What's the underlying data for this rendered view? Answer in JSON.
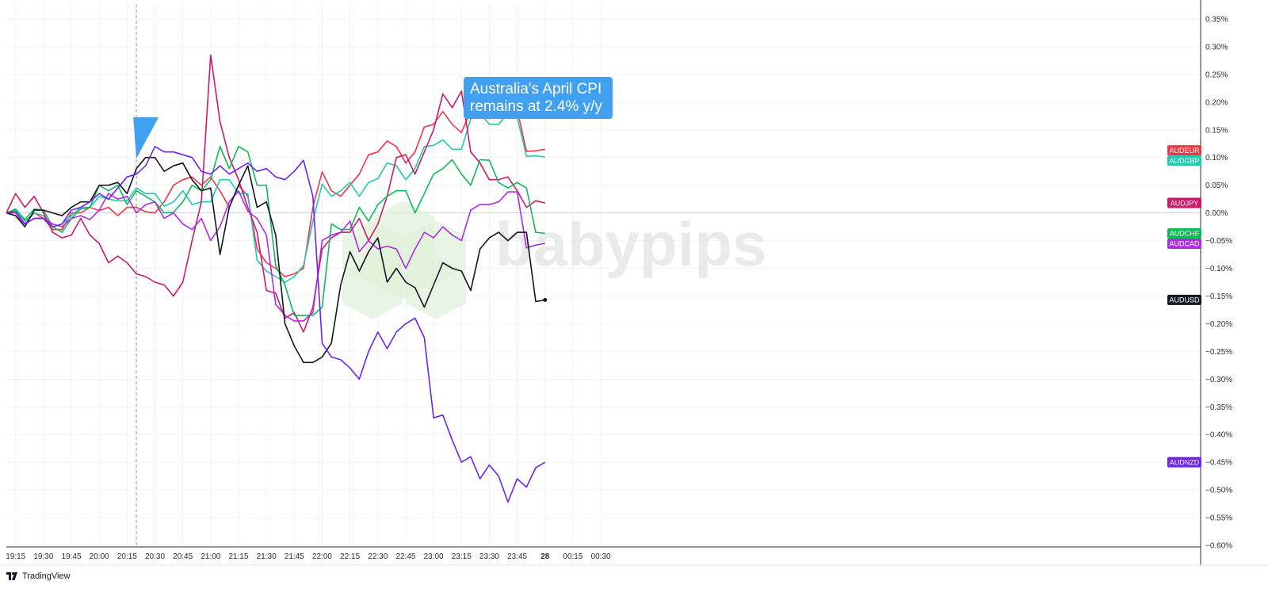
{
  "branding": {
    "platform": "TradingView",
    "watermark": "babypips"
  },
  "annotation": {
    "lines": [
      "Australia's April CPI",
      "remains at 2.4% y/y"
    ],
    "color": "#42a0f0",
    "at_time_index": 14
  },
  "colors": {
    "grid": "#f0f3fa",
    "zero_line": "#d1d4dc",
    "axis": "#2a2e39",
    "crosshair": "#9598a1"
  },
  "chart_data": {
    "type": "line",
    "title": "",
    "xlabel": "",
    "ylabel": "",
    "ylim": [
      -0.6,
      0.35
    ],
    "ytick_values": [
      0.35,
      0.3,
      0.25,
      0.2,
      0.15,
      0.1,
      0.05,
      0.0,
      -0.05,
      -0.1,
      -0.15,
      -0.2,
      -0.25,
      -0.3,
      -0.35,
      -0.4,
      -0.45,
      -0.5,
      -0.55,
      -0.6
    ],
    "ytick_labels": [
      "0.35%",
      "0.30%",
      "0.25%",
      "0.20%",
      "0.15%",
      "0.10%",
      "0.05%",
      "0.00%",
      "−0.05%",
      "−0.10%",
      "−0.15%",
      "−0.20%",
      "−0.25%",
      "−0.30%",
      "−0.35%",
      "−0.40%",
      "−0.45%",
      "−0.50%",
      "−0.55%",
      "−0.60%"
    ],
    "x_ticks": [
      "19:15",
      "19:30",
      "19:45",
      "20:00",
      "20:15",
      "20:30",
      "20:45",
      "21:00",
      "21:15",
      "21:30",
      "21:45",
      "22:00",
      "22:15",
      "22:30",
      "22:45",
      "23:00",
      "23:15",
      "23:30",
      "23:45",
      "28",
      "00:15",
      "00:30"
    ],
    "x_bold_tick": "28",
    "time_step_minutes": 5,
    "first_point_time": "19:10",
    "series": [
      {
        "name": "AUDEUR",
        "color": "#f23645",
        "last": 0.113,
        "values": [
          0,
          0,
          -0.02,
          0,
          -0.01,
          -0.03,
          -0.03,
          0,
          0,
          0.01,
          0.004,
          0.01,
          -0.005,
          0.01,
          0.01,
          0.002,
          0,
          0.02,
          0.05,
          0.06,
          0.065,
          0.05,
          0.065,
          0.04,
          0.01,
          0.05,
          0.03,
          -0.065,
          -0.09,
          -0.1,
          -0.115,
          -0.11,
          -0.1,
          0.01,
          0.074,
          0.04,
          0.03,
          0.05,
          0.07,
          0.105,
          0.11,
          0.13,
          0.12,
          0.09,
          0.11,
          0.155,
          0.16,
          0.183,
          0.16,
          0.145,
          0.185,
          0.183,
          0.17,
          0.18,
          0.205,
          0.187,
          0.111,
          0.112,
          0.115
        ]
      },
      {
        "name": "AUDGBP",
        "color": "#22c8b0",
        "last": 0.101,
        "values": [
          0,
          0.005,
          -0.015,
          0,
          -0.005,
          -0.025,
          -0.02,
          -0.005,
          0.01,
          0.01,
          0.03,
          0.025,
          0.022,
          0.022,
          0.045,
          0.035,
          0.035,
          0.012,
          0.02,
          0.04,
          0.015,
          0.02,
          0.02,
          0.06,
          0.06,
          0.035,
          0.035,
          -0.085,
          -0.105,
          -0.115,
          -0.125,
          -0.115,
          -0.095,
          -0.015,
          0.052,
          0.03,
          0.04,
          0.055,
          0.03,
          0.055,
          0.062,
          0.09,
          0.085,
          0.06,
          0.08,
          0.12,
          0.122,
          0.132,
          0.115,
          0.115,
          0.17,
          0.18,
          0.16,
          0.16,
          0.18,
          0.173,
          0.102,
          0.103,
          0.101
        ]
      },
      {
        "name": "AUDJPY",
        "color": "#cc1a6a",
        "last": 0.018,
        "values": [
          0,
          0.035,
          0.01,
          0.03,
          0,
          -0.035,
          -0.045,
          -0.04,
          -0.01,
          -0.04,
          -0.055,
          -0.09,
          -0.078,
          -0.09,
          -0.11,
          -0.115,
          -0.125,
          -0.13,
          -0.15,
          -0.125,
          -0.05,
          0.02,
          0.285,
          0.165,
          0.1,
          0.06,
          0.01,
          -0.035,
          -0.14,
          -0.145,
          -0.19,
          -0.18,
          -0.215,
          -0.17,
          -0.065,
          -0.045,
          -0.035,
          -0.035,
          -0.01,
          -0.05,
          -0.02,
          0.03,
          0.1,
          0.105,
          0.07,
          0.11,
          0.15,
          0.215,
          0.19,
          0.22,
          0.11,
          0.09,
          0.06,
          0.06,
          0.065,
          0.04,
          0.01,
          0.022,
          0.018
        ]
      },
      {
        "name": "AUDCHF",
        "color": "#0fba58",
        "last": -0.037,
        "values": [
          0,
          0.007,
          -0.012,
          0.007,
          0.005,
          -0.025,
          -0.035,
          -0.01,
          0.007,
          0.01,
          0.05,
          0.04,
          0.05,
          0.015,
          0.04,
          0.03,
          0.02,
          0,
          0.001,
          0.02,
          0.05,
          0.04,
          0.06,
          0.12,
          0.08,
          0.12,
          0.11,
          0.05,
          0.05,
          -0.095,
          -0.13,
          -0.185,
          -0.185,
          -0.185,
          -0.17,
          -0.02,
          -0.03,
          -0.03,
          0.01,
          -0.015,
          0.015,
          0.03,
          0.04,
          0.04,
          0,
          0.035,
          0.07,
          0.08,
          0.096,
          0.07,
          0.05,
          0.096,
          0.095,
          0.055,
          0.045,
          0.055,
          0.045,
          -0.035,
          -0.037
        ]
      },
      {
        "name": "AUDCAD",
        "color": "#b02be6",
        "last": -0.055,
        "values": [
          0,
          -0.005,
          -0.02,
          -0.01,
          -0.01,
          -0.02,
          -0.025,
          -0.01,
          -0.005,
          -0.012,
          0.005,
          0.035,
          0.025,
          0.03,
          0,
          0.015,
          0.02,
          -0.01,
          0,
          -0.02,
          -0.03,
          -0.01,
          -0.05,
          -0.025,
          0.02,
          0.04,
          0.003,
          -0.01,
          -0.04,
          -0.165,
          -0.185,
          -0.195,
          -0.195,
          -0.18,
          -0.05,
          -0.04,
          -0.035,
          -0.015,
          -0.07,
          -0.05,
          -0.065,
          -0.06,
          -0.065,
          -0.1,
          -0.065,
          -0.035,
          -0.045,
          -0.025,
          -0.04,
          -0.05,
          0.005,
          0.015,
          0.015,
          0.02,
          0.038,
          0.038,
          -0.063,
          -0.058,
          -0.055
        ]
      },
      {
        "name": "AUDUSD",
        "color": "#131722",
        "last": -0.157,
        "values": [
          0,
          -0.005,
          -0.025,
          0.005,
          0.005,
          0,
          -0.005,
          0.01,
          0.02,
          0.02,
          0.05,
          0.05,
          0.055,
          0.035,
          0.08,
          0.1,
          0.1,
          0.075,
          0.085,
          0.09,
          0.06,
          0.04,
          0.045,
          -0.075,
          0.01,
          0.05,
          0.085,
          0.01,
          0.02,
          -0.04,
          -0.2,
          -0.24,
          -0.27,
          -0.27,
          -0.26,
          -0.235,
          -0.13,
          -0.07,
          -0.105,
          -0.07,
          -0.045,
          -0.125,
          -0.1,
          -0.125,
          -0.135,
          -0.17,
          -0.13,
          -0.09,
          -0.1,
          -0.105,
          -0.14,
          -0.065,
          -0.045,
          -0.035,
          -0.05,
          -0.035,
          -0.035,
          -0.16,
          -0.157
        ]
      },
      {
        "name": "AUDNZD",
        "color": "#6e24ef",
        "last": -0.45,
        "values": [
          0,
          0.002,
          -0.02,
          -0.01,
          -0.01,
          -0.025,
          -0.02,
          0.005,
          0.01,
          0.02,
          0.035,
          0.025,
          0.045,
          0.065,
          0.07,
          0.085,
          0.12,
          0.11,
          0.11,
          0.105,
          0.1,
          0.075,
          0.07,
          0.085,
          0.07,
          0.08,
          0.09,
          0.075,
          0.08,
          0.065,
          0.06,
          0.075,
          0.095,
          0.03,
          -0.235,
          -0.26,
          -0.265,
          -0.28,
          -0.3,
          -0.25,
          -0.215,
          -0.245,
          -0.215,
          -0.2,
          -0.19,
          -0.225,
          -0.37,
          -0.365,
          -0.41,
          -0.45,
          -0.44,
          -0.48,
          -0.455,
          -0.475,
          -0.522,
          -0.48,
          -0.495,
          -0.46,
          -0.45
        ]
      }
    ]
  }
}
